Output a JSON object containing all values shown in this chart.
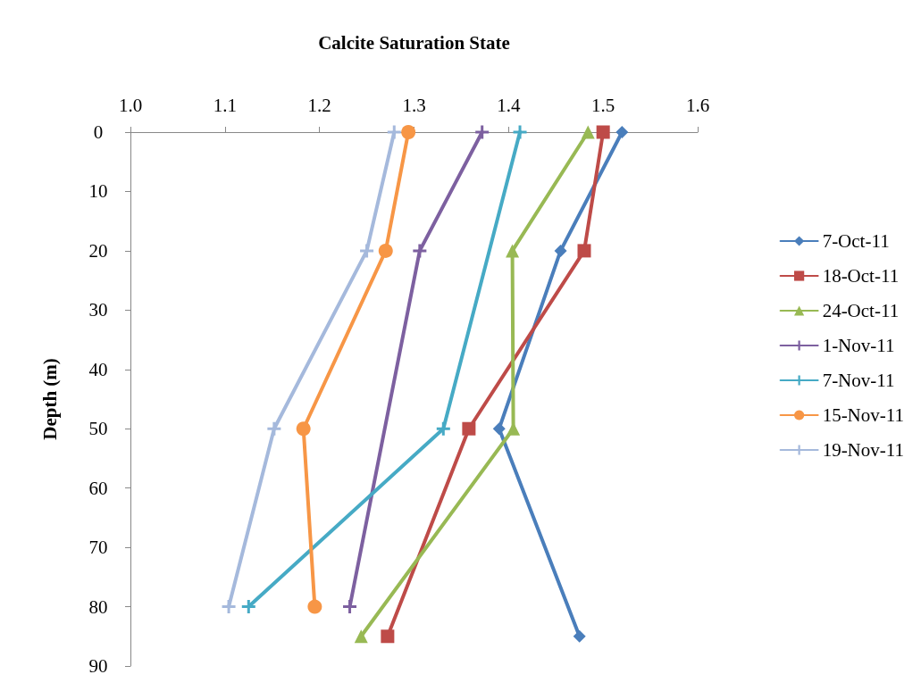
{
  "chart_data": {
    "type": "line",
    "xlabel": "Calcite Saturation State",
    "ylabel": "Depth (m)",
    "xlim": [
      1.0,
      1.6
    ],
    "xticks": [
      {
        "value": 1.0,
        "label": "1.0"
      },
      1.1,
      1.2,
      1.3,
      1.4,
      1.5,
      1.6
    ],
    "ylim": [
      90,
      0
    ],
    "yticks": [
      0,
      10,
      20,
      30,
      40,
      50,
      60,
      70,
      80,
      90
    ],
    "grid": false,
    "legend": "right",
    "series": [
      {
        "name": "7-Oct-11",
        "color": "#4a7ebb",
        "marker": "diamond",
        "x": [
          1.52,
          1.455,
          1.39,
          1.475
        ],
        "values": [
          0,
          20,
          50,
          85
        ]
      },
      {
        "name": "18-Oct-11",
        "color": "#be4b48",
        "marker": "square",
        "x": [
          1.5,
          1.48,
          1.358,
          1.272
        ],
        "values": [
          0,
          20,
          50,
          85
        ]
      },
      {
        "name": "24-Oct-11",
        "color": "#98b954",
        "marker": "triangle",
        "x": [
          1.484,
          1.404,
          1.405,
          1.244
        ],
        "values": [
          0,
          20,
          50,
          85
        ]
      },
      {
        "name": "1-Nov-11",
        "color": "#7d60a0",
        "marker": "cross",
        "x": [
          1.372,
          1.306,
          1.232
        ],
        "values": [
          0,
          20,
          80
        ]
      },
      {
        "name": "7-Nov-11",
        "color": "#46aac5",
        "marker": "cross",
        "x": [
          1.412,
          1.331,
          1.125
        ],
        "values": [
          0,
          50,
          80
        ]
      },
      {
        "name": "15-Nov-11",
        "color": "#f79646",
        "marker": "circle",
        "x": [
          1.294,
          1.27,
          1.183,
          1.195
        ],
        "values": [
          0,
          20,
          50,
          80
        ]
      },
      {
        "name": "19-Nov-11",
        "color": "#a5b9dc",
        "marker": "cross",
        "x": [
          1.279,
          1.25,
          1.152,
          1.104
        ],
        "values": [
          0,
          20,
          50,
          80
        ]
      }
    ]
  }
}
